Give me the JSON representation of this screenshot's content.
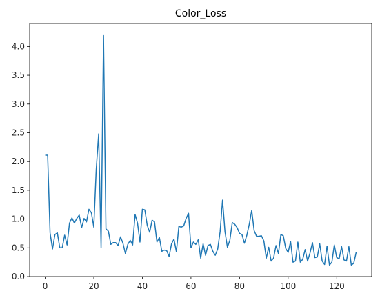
{
  "chart_data": {
    "type": "line",
    "title": "Color_Loss",
    "xlabel": "",
    "ylabel": "",
    "xlim": [
      -6.4,
      134.4
    ],
    "ylim": [
      0.0,
      4.4
    ],
    "grid": false,
    "line_color": "#1f77b4",
    "xticks": [
      0,
      20,
      40,
      60,
      80,
      100,
      120
    ],
    "xtick_labels": [
      "0",
      "20",
      "40",
      "60",
      "80",
      "100",
      "120"
    ],
    "yticks": [
      0.0,
      0.5,
      1.0,
      1.5,
      2.0,
      2.5,
      3.0,
      3.5,
      4.0
    ],
    "ytick_labels": [
      "0.0",
      "0.5",
      "1.0",
      "1.5",
      "2.0",
      "2.5",
      "3.0",
      "3.5",
      "4.0"
    ],
    "x": [
      0,
      1,
      2,
      3,
      4,
      5,
      6,
      7,
      8,
      9,
      10,
      11,
      12,
      13,
      14,
      15,
      16,
      17,
      18,
      19,
      20,
      21,
      22,
      23,
      24,
      25,
      26,
      27,
      28,
      29,
      30,
      31,
      32,
      33,
      34,
      35,
      36,
      37,
      38,
      39,
      40,
      41,
      42,
      43,
      44,
      45,
      46,
      47,
      48,
      49,
      50,
      51,
      52,
      53,
      54,
      55,
      56,
      57,
      58,
      59,
      60,
      61,
      62,
      63,
      64,
      65,
      66,
      67,
      68,
      69,
      70,
      71,
      72,
      73,
      74,
      75,
      76,
      77,
      78,
      79,
      80,
      81,
      82,
      83,
      84,
      85,
      86,
      87,
      88,
      89,
      90,
      91,
      92,
      93,
      94,
      95,
      96,
      97,
      98,
      99,
      100,
      101,
      102,
      103,
      104,
      105,
      106,
      107,
      108,
      109,
      110,
      111,
      112,
      113,
      114,
      115,
      116,
      117,
      118,
      119,
      120,
      121,
      122,
      123,
      124,
      125,
      126,
      127,
      128
    ],
    "y": [
      2.11,
      2.11,
      0.76,
      0.48,
      0.73,
      0.76,
      0.5,
      0.5,
      0.72,
      0.55,
      0.93,
      1.02,
      0.93,
      1.01,
      1.07,
      0.85,
      1.01,
      0.95,
      1.17,
      1.11,
      0.86,
      1.86,
      2.48,
      0.5,
      4.19,
      0.83,
      0.79,
      0.56,
      0.59,
      0.59,
      0.54,
      0.69,
      0.58,
      0.4,
      0.56,
      0.63,
      0.55,
      1.08,
      0.93,
      0.6,
      1.17,
      1.16,
      0.89,
      0.77,
      0.98,
      0.95,
      0.6,
      0.68,
      0.44,
      0.46,
      0.45,
      0.35,
      0.57,
      0.65,
      0.43,
      0.87,
      0.86,
      0.88,
      1.01,
      1.1,
      0.5,
      0.6,
      0.56,
      0.64,
      0.32,
      0.57,
      0.37,
      0.54,
      0.56,
      0.44,
      0.37,
      0.48,
      0.78,
      1.33,
      0.78,
      0.51,
      0.63,
      0.94,
      0.91,
      0.85,
      0.75,
      0.73,
      0.58,
      0.72,
      0.91,
      1.15,
      0.8,
      0.7,
      0.7,
      0.71,
      0.62,
      0.32,
      0.51,
      0.27,
      0.32,
      0.54,
      0.4,
      0.73,
      0.71,
      0.49,
      0.42,
      0.61,
      0.25,
      0.27,
      0.6,
      0.25,
      0.3,
      0.47,
      0.27,
      0.41,
      0.59,
      0.33,
      0.34,
      0.57,
      0.27,
      0.21,
      0.53,
      0.2,
      0.25,
      0.55,
      0.33,
      0.31,
      0.52,
      0.29,
      0.27,
      0.52,
      0.2,
      0.23,
      0.42
    ]
  }
}
